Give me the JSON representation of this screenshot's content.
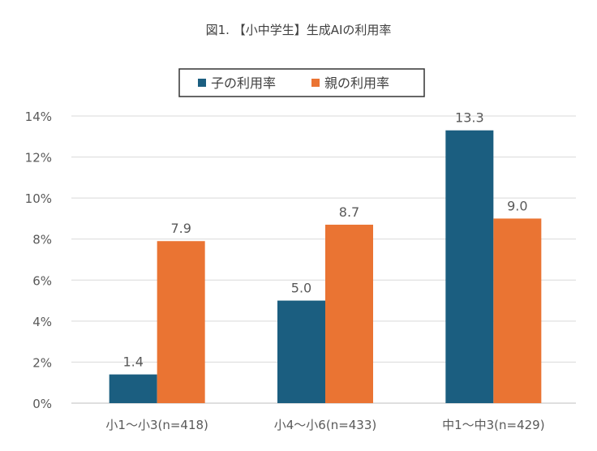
{
  "chart_data": {
    "type": "bar",
    "title": "図1. 【小中学生】生成AIの利用率",
    "categories": [
      "小1～小3(n=418)",
      "小4～小6(n=433)",
      "中1～中3(n=429)"
    ],
    "series": [
      {
        "name": "子の利用率",
        "values": [
          1.4,
          5.0,
          13.3
        ],
        "color": "#1b5e80",
        "labels": [
          "1.4",
          "5.0",
          "13.3"
        ]
      },
      {
        "name": "親の利用率",
        "values": [
          7.9,
          8.7,
          9.0
        ],
        "color": "#ea7433",
        "labels": [
          "7.9",
          "8.7",
          "9.0"
        ]
      }
    ],
    "ylim": [
      0,
      14
    ],
    "yticks": [
      "0%",
      "2%",
      "4%",
      "6%",
      "8%",
      "10%",
      "12%",
      "14%"
    ],
    "ytick_values": [
      0,
      2,
      4,
      6,
      8,
      10,
      12,
      14
    ],
    "grid": true,
    "legend": "top-center",
    "xlabel": "",
    "ylabel": ""
  }
}
